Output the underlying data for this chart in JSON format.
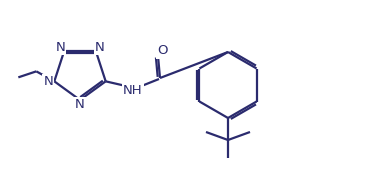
{
  "bg_color": "#ffffff",
  "line_color": "#2b2b6e",
  "line_width": 1.6,
  "font_size": 9.5,
  "figsize": [
    3.75,
    1.78
  ],
  "dpi": 100,
  "xlim": [
    0,
    3.75
  ],
  "ylim": [
    0,
    1.78
  ]
}
